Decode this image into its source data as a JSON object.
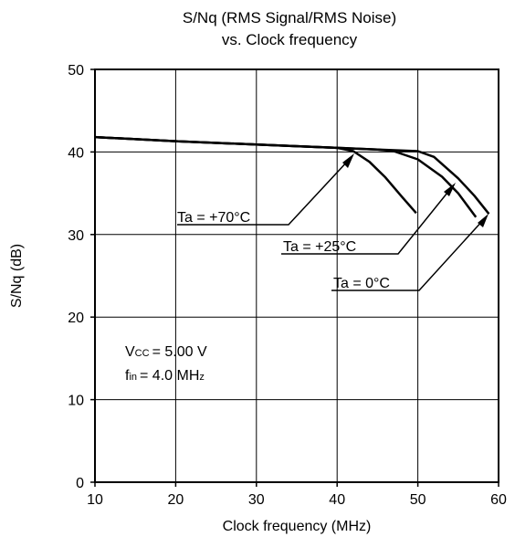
{
  "chart_data": {
    "type": "line",
    "title_line1": "S/Nq (RMS Signal/RMS Noise)",
    "title_line2": "vs. Clock frequency",
    "xlabel": "Clock frequency (MHz)",
    "ylabel": "S/Nq (dB)",
    "xlim": [
      10,
      60
    ],
    "ylim": [
      0,
      50
    ],
    "xticks": [
      "10",
      "20",
      "30",
      "40",
      "50",
      "60"
    ],
    "yticks": [
      "0",
      "10",
      "20",
      "30",
      "40",
      "50"
    ],
    "grid": true,
    "series": [
      {
        "name": "Ta = +70°C",
        "x": [
          10,
          20,
          30,
          35,
          40,
          42,
          44,
          46,
          48,
          49.8
        ],
        "y": [
          41.8,
          41.3,
          40.9,
          40.7,
          40.5,
          40.1,
          38.8,
          36.9,
          34.6,
          32.6
        ]
      },
      {
        "name": "Ta = +25°C",
        "x": [
          10,
          20,
          30,
          40,
          45,
          47,
          50,
          53,
          55,
          57.2
        ],
        "y": [
          41.8,
          41.3,
          40.9,
          40.5,
          40.3,
          40.1,
          39.1,
          37.0,
          35.0,
          32.1
        ]
      },
      {
        "name": "Ta = 0°C",
        "x": [
          10,
          20,
          30,
          40,
          45,
          50,
          52,
          55,
          57,
          58.8
        ],
        "y": [
          41.8,
          41.3,
          40.9,
          40.5,
          40.3,
          40.1,
          39.4,
          36.8,
          34.7,
          32.5
        ]
      }
    ],
    "annotations": {
      "ta70": "Ta = +70°C",
      "ta25": "Ta = +25°C",
      "ta0": "Ta = 0°C"
    },
    "conditions": {
      "vcc_symbol": "V",
      "vcc_sub": "CC",
      "vcc_value": "= 5.00 V",
      "fin_symbol": "f",
      "fin_sub": "in",
      "fin_value": "= 4.0 MH",
      "fin_unit_tail": "z"
    }
  }
}
